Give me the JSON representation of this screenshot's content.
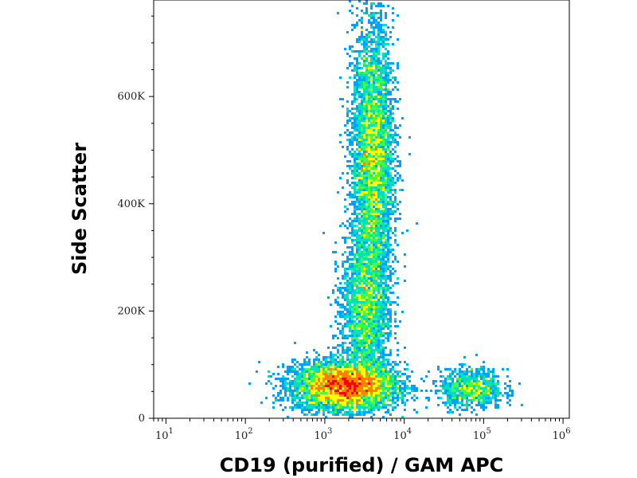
{
  "chart_data": {
    "type": "scatter",
    "title": "",
    "xlabel": "CD19 (purified) / GAM APC",
    "ylabel": "Side Scatter",
    "x_scale": "log",
    "xlim": [
      7,
      1200000
    ],
    "ylim": [
      0,
      780000
    ],
    "x_ticks": [
      {
        "value": 10,
        "base": "10",
        "exp": "1"
      },
      {
        "value": 100,
        "base": "10",
        "exp": "2"
      },
      {
        "value": 1000,
        "base": "10",
        "exp": "3"
      },
      {
        "value": 10000,
        "base": "10",
        "exp": "4"
      },
      {
        "value": 100000,
        "base": "10",
        "exp": "5"
      },
      {
        "value": 1000000,
        "base": "10",
        "exp": "6"
      }
    ],
    "y_ticks": [
      {
        "value": 0,
        "label": "0"
      },
      {
        "value": 200000,
        "label": "200K"
      },
      {
        "value": 400000,
        "label": "400K"
      },
      {
        "value": 600000,
        "label": "600K"
      }
    ],
    "populations": [
      {
        "x_center": 1800,
        "y_center": 60000,
        "x_spread_decades": 0.32,
        "y_spread": 22000,
        "count": 5500
      },
      {
        "x_center": 4000,
        "y_center": 480000,
        "x_spread_decades": 0.13,
        "y_spread": 130000,
        "count": 5000
      },
      {
        "x_center": 3200,
        "y_center": 200000,
        "x_spread_decades": 0.15,
        "y_spread": 70000,
        "count": 2200
      },
      {
        "x_center": 70000,
        "y_center": 55000,
        "x_spread_decades": 0.2,
        "y_spread": 18000,
        "count": 900
      }
    ],
    "colormap": [
      "#0000ff",
      "#00a0ff",
      "#00e0c0",
      "#40ff40",
      "#ffff00",
      "#ff8000",
      "#ff0000"
    ],
    "grid": false,
    "legend": "none"
  }
}
